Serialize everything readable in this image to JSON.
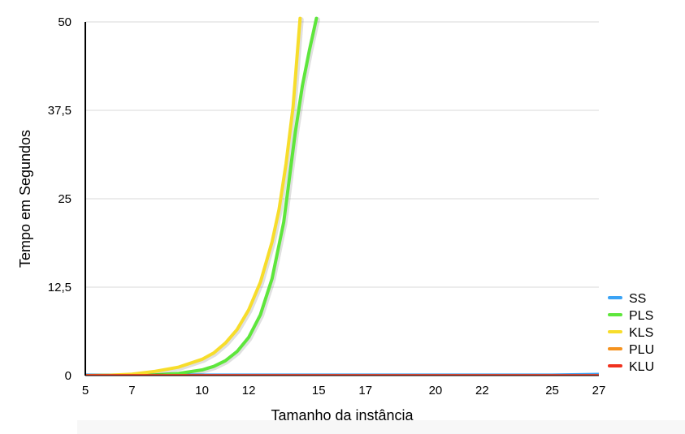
{
  "chart_data": {
    "type": "line",
    "xlabel": "Tamanho da instância",
    "ylabel": "Tempo em Segundos",
    "x_ticks": [
      5,
      7,
      10,
      12,
      15,
      17,
      20,
      22,
      25,
      27
    ],
    "y_ticks": [
      0,
      12.5,
      25,
      37.5,
      50
    ],
    "y_tick_labels": [
      "0",
      "12,5",
      "25",
      "37,5",
      "50"
    ],
    "xlim": [
      5,
      27
    ],
    "ylim": [
      0,
      50
    ],
    "grid": "horizontal",
    "legend_position": "bottom-right",
    "series": [
      {
        "name": "SS",
        "color": "#3aa3f5",
        "x": [
          5,
          7,
          10,
          12,
          15,
          17,
          20,
          22,
          25,
          27
        ],
        "y": [
          0.1,
          0.1,
          0.1,
          0.1,
          0.1,
          0.1,
          0.1,
          0.1,
          0.1,
          0.2
        ]
      },
      {
        "name": "PLS",
        "color": "#5ee63c",
        "x": [
          5,
          6,
          7,
          8,
          9,
          10,
          10.5,
          11,
          11.5,
          12,
          12.5,
          13,
          13.5,
          14,
          14.3,
          14.6,
          14.9
        ],
        "y": [
          0,
          0,
          0.05,
          0.1,
          0.3,
          0.8,
          1.3,
          2.1,
          3.4,
          5.4,
          8.6,
          13.7,
          21.7,
          34.5,
          41.0,
          46.0,
          50.5
        ]
      },
      {
        "name": "KLS",
        "color": "#f7dd2b",
        "x": [
          5,
          6,
          7,
          8,
          9,
          10,
          10.5,
          11,
          11.5,
          12,
          12.5,
          13,
          13.3,
          13.6,
          13.9,
          14.2
        ],
        "y": [
          0,
          0.05,
          0.2,
          0.6,
          1.2,
          2.3,
          3.2,
          4.6,
          6.5,
          9.3,
          13.2,
          18.9,
          23.5,
          30.0,
          38.0,
          50.5
        ]
      },
      {
        "name": "PLU",
        "color": "#f5921e",
        "x": [
          5,
          7,
          10,
          12,
          15,
          17,
          20,
          22,
          25,
          27
        ],
        "y": [
          0,
          0,
          0,
          0,
          0,
          0,
          0,
          0,
          0,
          0
        ]
      },
      {
        "name": "KLU",
        "color": "#f0321e",
        "x": [
          5,
          7,
          10,
          12,
          15,
          17,
          20,
          22,
          25,
          27
        ],
        "y": [
          0,
          0,
          0,
          0,
          0,
          0,
          0,
          0,
          0,
          0
        ]
      }
    ]
  }
}
